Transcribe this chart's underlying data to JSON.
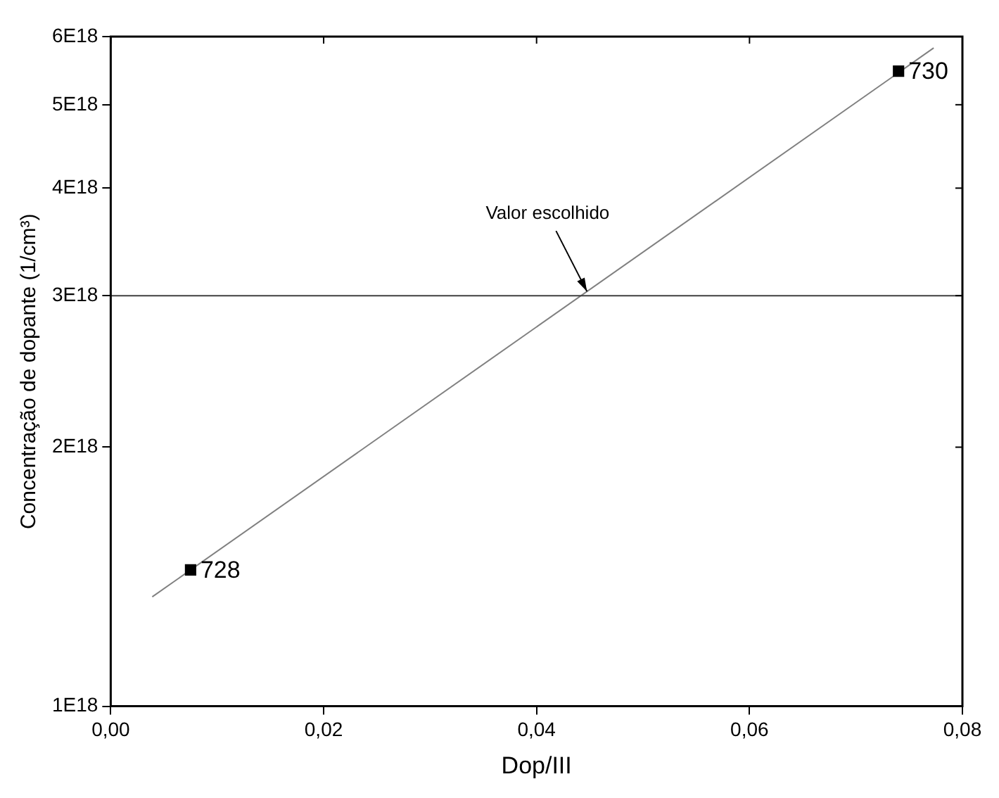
{
  "chart_data": {
    "type": "scatter",
    "xlabel": "Dop/III",
    "ylabel": "Concentração de dopante (1/cm³)",
    "log": "y",
    "grid": false,
    "legend": false,
    "marker": "square",
    "xlim": [
      0,
      0.08
    ],
    "xticks": [
      {
        "value": 0,
        "label": "0,00"
      },
      {
        "value": 0.02,
        "label": "0,02"
      },
      {
        "value": 0.04,
        "label": "0,04"
      },
      {
        "value": 0.06,
        "label": "0,06"
      },
      {
        "value": 0.08,
        "label": "0,08"
      }
    ],
    "ylim": [
      1e+18,
      6e+18
    ],
    "yticks": [
      {
        "value": 1e+18,
        "label": "1E18"
      },
      {
        "value": 2e+18,
        "label": "2E18"
      },
      {
        "value": 3e+18,
        "label": "3E18"
      },
      {
        "value": 4e+18,
        "label": "4E18"
      },
      {
        "value": 5e+18,
        "label": "5E18"
      },
      {
        "value": 6e+18,
        "label": "6E18"
      }
    ],
    "series": [
      {
        "type": "scatter",
        "name": "728",
        "color": "#000000",
        "x": [
          0.0075
        ],
        "values": [
          1.44e+18
        ]
      },
      {
        "type": "scatter",
        "name": "730",
        "color": "#000000",
        "x": [
          0.074
        ],
        "values": [
          5.47e+18
        ]
      },
      {
        "type": "line",
        "color": "#808080",
        "marker": "none",
        "line_style": "solid",
        "x": [
          0.0039,
          0.0773
        ],
        "values": [
          1.34e+18,
          5.82e+18
        ]
      }
    ],
    "ref_lines": [
      {
        "axis": "y",
        "value": 3e+18,
        "color": "#404040"
      }
    ],
    "annotations": [
      {
        "text": "Valor escolhido",
        "x": 0.045,
        "y": 3e+18
      }
    ]
  }
}
